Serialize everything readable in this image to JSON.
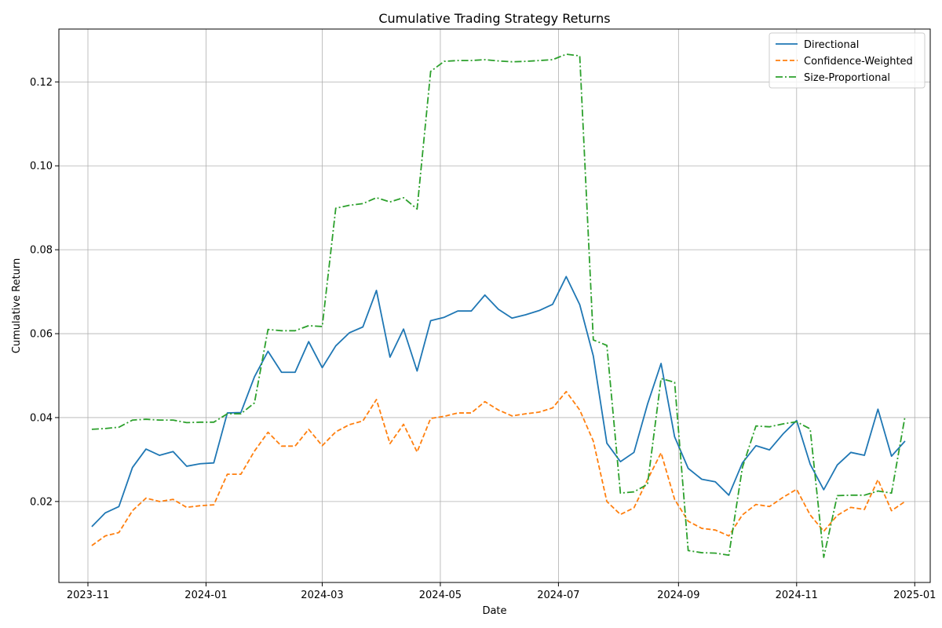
{
  "chart_data": {
    "type": "line",
    "title": "Cumulative Trading Strategy Returns",
    "xlabel": "Date",
    "ylabel": "Cumulative Return",
    "grid": true,
    "legend_position": "top-right",
    "x_range": [
      "2023-10-17",
      "2025-01-09"
    ],
    "ylim": [
      0.0007,
      0.1326
    ],
    "x_ticks": [
      {
        "date": "2023-11-01",
        "label": "2023-11"
      },
      {
        "date": "2024-01-01",
        "label": "2024-01"
      },
      {
        "date": "2024-03-01",
        "label": "2024-03"
      },
      {
        "date": "2024-05-01",
        "label": "2024-05"
      },
      {
        "date": "2024-07-01",
        "label": "2024-07"
      },
      {
        "date": "2024-09-01",
        "label": "2024-09"
      },
      {
        "date": "2024-11-01",
        "label": "2024-11"
      },
      {
        "date": "2025-01-01",
        "label": "2025-01"
      }
    ],
    "y_ticks": [
      {
        "value": 0.02,
        "label": "0.02"
      },
      {
        "value": 0.04,
        "label": "0.04"
      },
      {
        "value": 0.06,
        "label": "0.06"
      },
      {
        "value": 0.08,
        "label": "0.08"
      },
      {
        "value": 0.1,
        "label": "0.10"
      },
      {
        "value": 0.12,
        "label": "0.12"
      }
    ],
    "x": [
      "2023-11-03",
      "2023-11-10",
      "2023-11-17",
      "2023-11-24",
      "2023-12-01",
      "2023-12-08",
      "2023-12-15",
      "2023-12-22",
      "2023-12-29",
      "2024-01-05",
      "2024-01-12",
      "2024-01-19",
      "2024-01-26",
      "2024-02-02",
      "2024-02-09",
      "2024-02-16",
      "2024-02-23",
      "2024-03-01",
      "2024-03-08",
      "2024-03-15",
      "2024-03-22",
      "2024-03-29",
      "2024-04-05",
      "2024-04-12",
      "2024-04-19",
      "2024-04-26",
      "2024-05-03",
      "2024-05-10",
      "2024-05-17",
      "2024-05-24",
      "2024-05-31",
      "2024-06-07",
      "2024-06-14",
      "2024-06-21",
      "2024-06-28",
      "2024-07-05",
      "2024-07-12",
      "2024-07-19",
      "2024-07-26",
      "2024-08-02",
      "2024-08-09",
      "2024-08-16",
      "2024-08-23",
      "2024-08-30",
      "2024-09-06",
      "2024-09-13",
      "2024-09-20",
      "2024-09-27",
      "2024-10-04",
      "2024-10-11",
      "2024-10-18",
      "2024-10-25",
      "2024-11-01",
      "2024-11-08",
      "2024-11-15",
      "2024-11-22",
      "2024-11-29",
      "2024-12-06",
      "2024-12-13",
      "2024-12-20",
      "2024-12-27"
    ],
    "series": [
      {
        "name": "Directional",
        "color": "#1f77b4",
        "dash": "solid",
        "values": [
          0.014,
          0.0173,
          0.0188,
          0.0281,
          0.0325,
          0.031,
          0.0319,
          0.0284,
          0.029,
          0.0292,
          0.0411,
          0.0412,
          0.0497,
          0.0558,
          0.0508,
          0.0508,
          0.0581,
          0.0519,
          0.0571,
          0.0602,
          0.0616,
          0.0703,
          0.0544,
          0.0611,
          0.0511,
          0.0631,
          0.0639,
          0.0654,
          0.0654,
          0.0692,
          0.0658,
          0.0637,
          0.0645,
          0.0655,
          0.067,
          0.0736,
          0.0669,
          0.0547,
          0.0339,
          0.0295,
          0.0317,
          0.0432,
          0.0529,
          0.0354,
          0.0279,
          0.0253,
          0.0247,
          0.0215,
          0.0292,
          0.0333,
          0.0323,
          0.0361,
          0.0393,
          0.0289,
          0.0228,
          0.0287,
          0.0317,
          0.031,
          0.042,
          0.0308,
          0.0344
        ]
      },
      {
        "name": "Confidence-Weighted",
        "color": "#ff7f0e",
        "dash": "dashed",
        "values": [
          0.0095,
          0.0118,
          0.0126,
          0.0178,
          0.0208,
          0.02,
          0.0205,
          0.0186,
          0.019,
          0.0192,
          0.0265,
          0.0265,
          0.032,
          0.0365,
          0.0332,
          0.0332,
          0.0372,
          0.0333,
          0.0366,
          0.0383,
          0.0392,
          0.0443,
          0.0338,
          0.0384,
          0.0318,
          0.0398,
          0.0403,
          0.0411,
          0.0411,
          0.0438,
          0.0418,
          0.0404,
          0.0409,
          0.0413,
          0.0423,
          0.0462,
          0.0418,
          0.0344,
          0.02,
          0.0169,
          0.0185,
          0.0252,
          0.0316,
          0.0205,
          0.0153,
          0.0136,
          0.0132,
          0.0118,
          0.0168,
          0.0193,
          0.0188,
          0.021,
          0.0229,
          0.0168,
          0.0129,
          0.0167,
          0.0186,
          0.0181,
          0.0252,
          0.0178,
          0.02
        ]
      },
      {
        "name": "Size-Proportional",
        "color": "#2ca02c",
        "dash": "dashdot",
        "values": [
          0.0372,
          0.0374,
          0.0377,
          0.0394,
          0.0396,
          0.0394,
          0.0394,
          0.0388,
          0.0389,
          0.0389,
          0.0409,
          0.0409,
          0.0435,
          0.061,
          0.0607,
          0.0607,
          0.0619,
          0.0617,
          0.0899,
          0.0906,
          0.091,
          0.0924,
          0.0914,
          0.0924,
          0.0897,
          0.1225,
          0.1249,
          0.1251,
          0.1251,
          0.1253,
          0.125,
          0.1248,
          0.1249,
          0.1251,
          0.1253,
          0.1266,
          0.1262,
          0.0585,
          0.0572,
          0.022,
          0.0223,
          0.0241,
          0.0493,
          0.0484,
          0.0083,
          0.0078,
          0.0077,
          0.0072,
          0.0281,
          0.038,
          0.0378,
          0.0385,
          0.039,
          0.0373,
          0.0067,
          0.0214,
          0.0215,
          0.0215,
          0.0225,
          0.022,
          0.0403
        ]
      }
    ]
  }
}
